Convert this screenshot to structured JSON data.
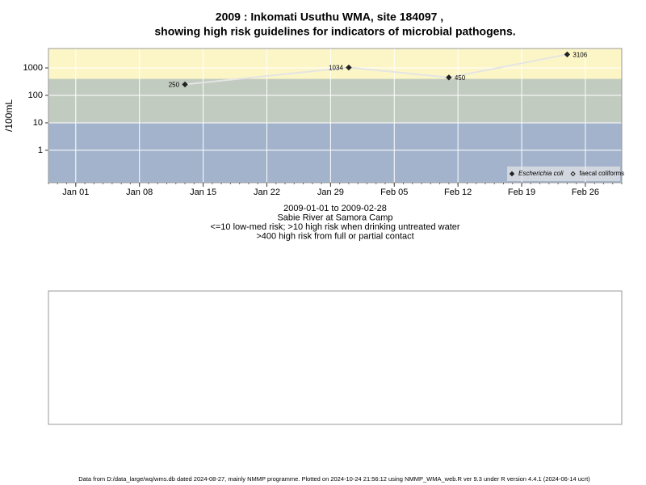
{
  "chart_data": {
    "type": "line",
    "title": "2009 : Inkomati Usuthu WMA, site 184097 ,",
    "subtitle": "showing high risk guidelines for indicators of microbial pathogens.",
    "ylabel": "/100mL",
    "notes": [
      "2009-01-01 to 2009-02-28",
      "Sabie River at Samora Camp",
      "<=10 low-med risk; >10 high risk when drinking untreated water",
      ">400 high risk from full or partial contact"
    ],
    "footer": "Data from D:/data_large/wq/wms.db dated 2024-08-27, mainly NMMP programme. Plotted on 2024-10-24 21:56:12 using NMMP_WMA_web.R ver 9.3 under R version 4.4.1 (2024-06-14 ucrt)",
    "x": [
      "2009-01-13",
      "2009-01-31",
      "2009-02-11",
      "2009-02-24"
    ],
    "series": [
      {
        "name": "Escherichia coli",
        "color": "#222222",
        "line_color": "#e4e4e4",
        "marker": "filled-diamond",
        "values": [
          250,
          1034,
          450,
          3106
        ]
      },
      {
        "name": "faecal coliforms",
        "color": "#222222",
        "line_color": "#e4e4e4",
        "marker": "open-diamond",
        "values": [
          null,
          null,
          null,
          null
        ]
      }
    ],
    "log_scale": true,
    "ylim": [
      0.066,
      5100
    ],
    "yticks": [
      1,
      10,
      100,
      1000
    ],
    "xlim": [
      "2008-12-29",
      "2009-03-02"
    ],
    "xticks": [
      {
        "value": "2009-01-01",
        "label": "Jan 01"
      },
      {
        "value": "2009-01-08",
        "label": "Jan 08"
      },
      {
        "value": "2009-01-15",
        "label": "Jan 15"
      },
      {
        "value": "2009-01-22",
        "label": "Jan 22"
      },
      {
        "value": "2009-01-29",
        "label": "Jan 29"
      },
      {
        "value": "2009-02-05",
        "label": "Feb 05"
      },
      {
        "value": "2009-02-12",
        "label": "Feb 12"
      },
      {
        "value": "2009-02-19",
        "label": "Feb 19"
      },
      {
        "value": "2009-02-26",
        "label": "Feb 26"
      }
    ],
    "thresholds": [
      10,
      400
    ],
    "band_colors": [
      "#a3b3cc",
      "#c2cbc0",
      "#fcf6c7"
    ],
    "grid": true,
    "legend": "bottom-right"
  }
}
